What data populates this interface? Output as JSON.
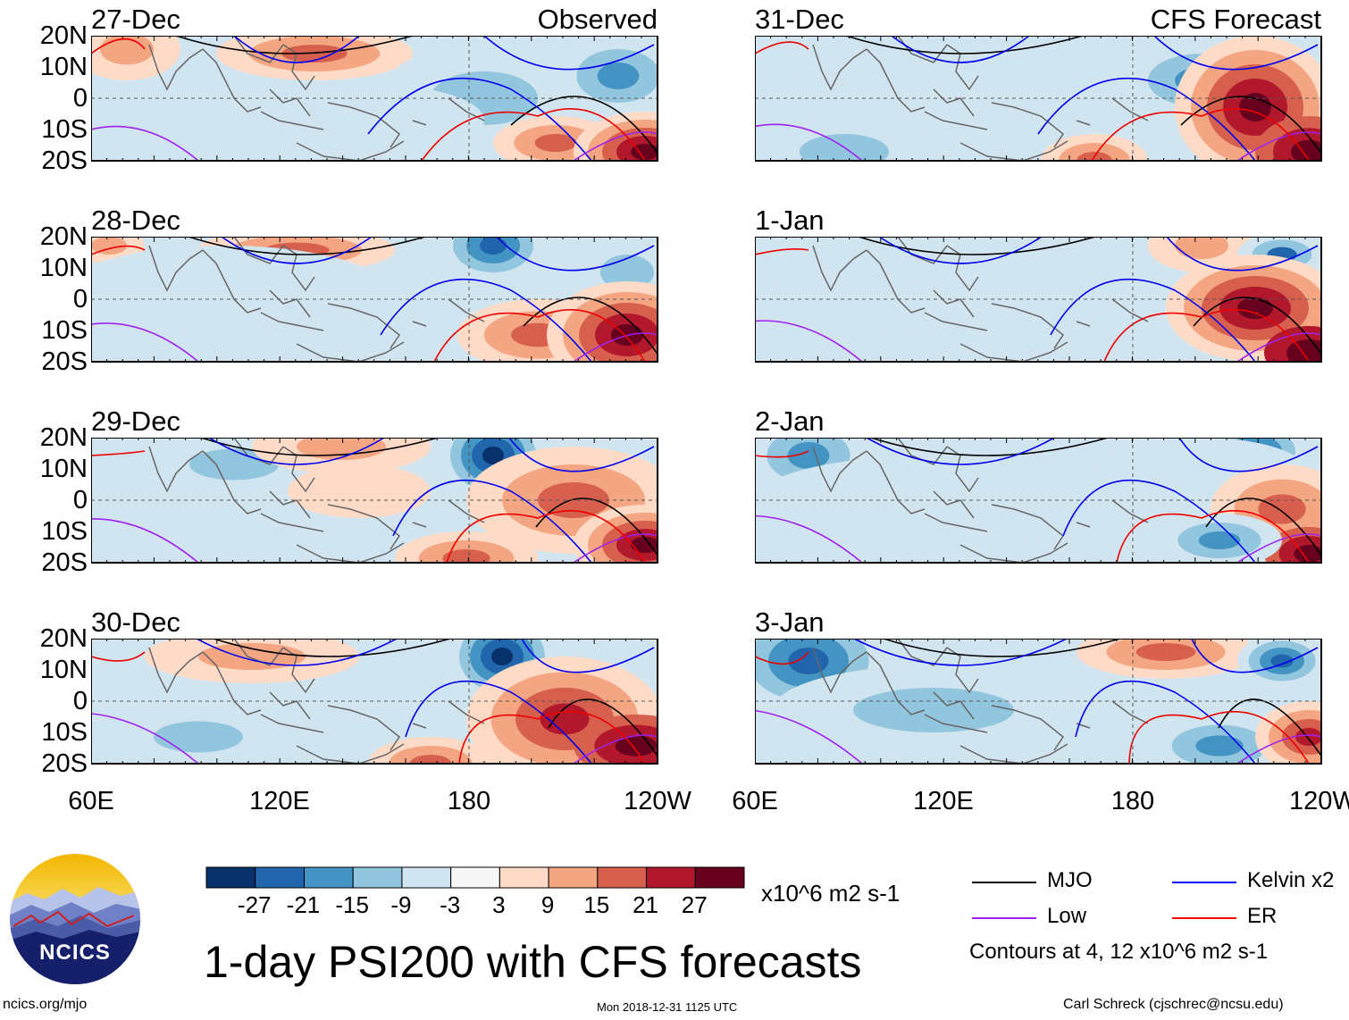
{
  "panels": [
    {
      "date": "27-Dec",
      "tag": "Observed"
    },
    {
      "date": "31-Dec",
      "tag": "CFS Forecast"
    },
    {
      "date": "28-Dec",
      "tag": ""
    },
    {
      "date": "1-Jan",
      "tag": ""
    },
    {
      "date": "29-Dec",
      "tag": ""
    },
    {
      "date": "2-Jan",
      "tag": ""
    },
    {
      "date": "30-Dec",
      "tag": ""
    },
    {
      "date": "3-Jan",
      "tag": ""
    }
  ],
  "axes": {
    "lat_ticks": [
      "20N",
      "10N",
      "0",
      "10S",
      "20S"
    ],
    "lon_ticks": [
      "60E",
      "120E",
      "180",
      "120W"
    ]
  },
  "colorbar": {
    "labels": [
      "-27",
      "-21",
      "-15",
      "-9",
      "-3",
      "3",
      "9",
      "15",
      "21",
      "27"
    ],
    "colors": [
      "#08306b",
      "#2166ac",
      "#4393c3",
      "#92c5de",
      "#d1e5f0",
      "#f7f7f7",
      "#fddbc7",
      "#f4a582",
      "#d6604d",
      "#b2182b",
      "#67001f"
    ],
    "units": "x10^6 m2 s-1"
  },
  "legend": {
    "items": [
      {
        "label": "MJO",
        "color": "#000000"
      },
      {
        "label": "Kelvin x2",
        "color": "#0000ee"
      },
      {
        "label": "Low",
        "color": "#a020f0"
      },
      {
        "label": "ER",
        "color": "#ee0000"
      }
    ],
    "note": "Contours at 4, 12 x10^6 m2 s-1"
  },
  "logo": {
    "text": "NCICS"
  },
  "title": "1-day PSI200 with CFS forecasts",
  "footer": {
    "url": "ncics.org/mjo",
    "timestamp": "Mon 2018-12-31 1125 UTC",
    "credit": "Carl Schreck (cjschrec@ncsu.edu)"
  }
}
